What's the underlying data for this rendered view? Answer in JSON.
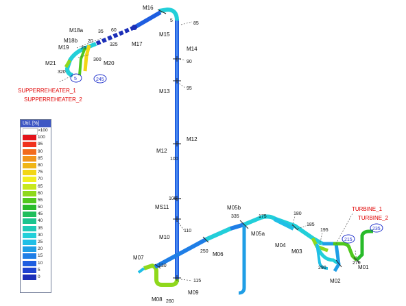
{
  "legend": {
    "title": "Util. [%]",
    "items": [
      {
        "label": ">100",
        "color": "#ffffff"
      },
      {
        "label": "100",
        "color": "#e3131b"
      },
      {
        "label": "95",
        "color": "#f0321e"
      },
      {
        "label": "90",
        "color": "#f26b1d"
      },
      {
        "label": "85",
        "color": "#f2951b"
      },
      {
        "label": "80",
        "color": "#f0b517"
      },
      {
        "label": "75",
        "color": "#f2d614"
      },
      {
        "label": "70",
        "color": "#f2ef1e"
      },
      {
        "label": "65",
        "color": "#c8e81e"
      },
      {
        "label": "60",
        "color": "#8fd81c"
      },
      {
        "label": "55",
        "color": "#4fc81e"
      },
      {
        "label": "50",
        "color": "#28bb2a"
      },
      {
        "label": "45",
        "color": "#1fbe5c"
      },
      {
        "label": "40",
        "color": "#1cc48f"
      },
      {
        "label": "35",
        "color": "#1fcab8"
      },
      {
        "label": "30",
        "color": "#22cfd9"
      },
      {
        "label": "25",
        "color": "#20bfe6"
      },
      {
        "label": "20",
        "color": "#1f9ee6"
      },
      {
        "label": "15",
        "color": "#1f7ee6"
      },
      {
        "label": "10",
        "color": "#1f5ee0"
      },
      {
        "label": "5",
        "color": "#1e42d0"
      },
      {
        "label": "0",
        "color": "#1c2fb8"
      }
    ]
  },
  "nodes": {
    "m16": "M16",
    "m15": "M15",
    "m14": "M14",
    "m13": "M13",
    "m12a": "M12",
    "m12b": "M12",
    "ms11": "MS11",
    "m10": "M10",
    "m09": "M09",
    "m08": "M08",
    "m07": "M07",
    "m06": "M06",
    "m05a": "M05a",
    "m05b": "M05b",
    "m04": "M04",
    "m03": "M03",
    "m02": "M02",
    "m01": "M01",
    "m17": "M17",
    "m18a": "M18a",
    "m18b": "M18b",
    "m19": "M19",
    "m20": "M20",
    "m21": "M21"
  },
  "numbers": {
    "n5": "5",
    "n85": "85",
    "n90": "90",
    "n95": "95",
    "n100": "100",
    "n105": "105",
    "n110": "110",
    "n115": "115",
    "n130": "130",
    "n250": "250",
    "n260": "260",
    "n335": "335",
    "n175": "175",
    "n180": "180",
    "n185": "185",
    "n195": "195",
    "n290": "290",
    "n270": "270",
    "n35": "35",
    "n60": "60",
    "n20": "20",
    "n325": "325",
    "n25": "25",
    "n300": "300",
    "n320": "320"
  },
  "equipment": {
    "superheater1": "SUPPERREHEATER_1",
    "superheater2": "SUPPERREHEATER_2",
    "turbine1": "TURBINE_1",
    "turbine2": "TURBINE_2"
  },
  "circled": {
    "c5": "5",
    "c245": "245",
    "c215": "215",
    "c235": "235"
  }
}
